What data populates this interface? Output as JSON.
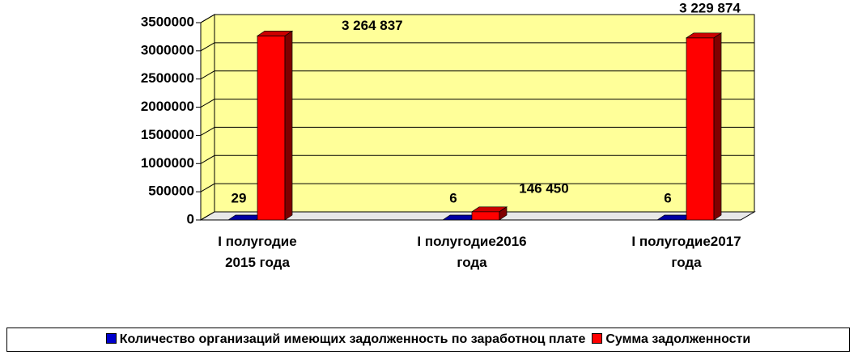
{
  "chart_data": {
    "type": "bar3d",
    "categories": [
      "I полугодие 2015 года",
      "I полугодие2016 года",
      "I полугодие2017 года"
    ],
    "series": [
      {
        "name": "Количество организаций имеющих задолженность по заработноц плате",
        "color": "#0000cc",
        "values": [
          29,
          6,
          6
        ]
      },
      {
        "name": "Сумма задолженности",
        "color": "#ff0000",
        "values": [
          3264837,
          146450,
          3229874
        ],
        "value_labels": [
          "3 264 837",
          "146 450",
          "3 229 874"
        ]
      }
    ],
    "ylim": [
      0,
      3500000
    ],
    "yticks": [
      0,
      500000,
      1000000,
      1500000,
      2000000,
      2500000,
      3000000,
      3500000
    ],
    "grid": true,
    "legend": "bottom"
  }
}
